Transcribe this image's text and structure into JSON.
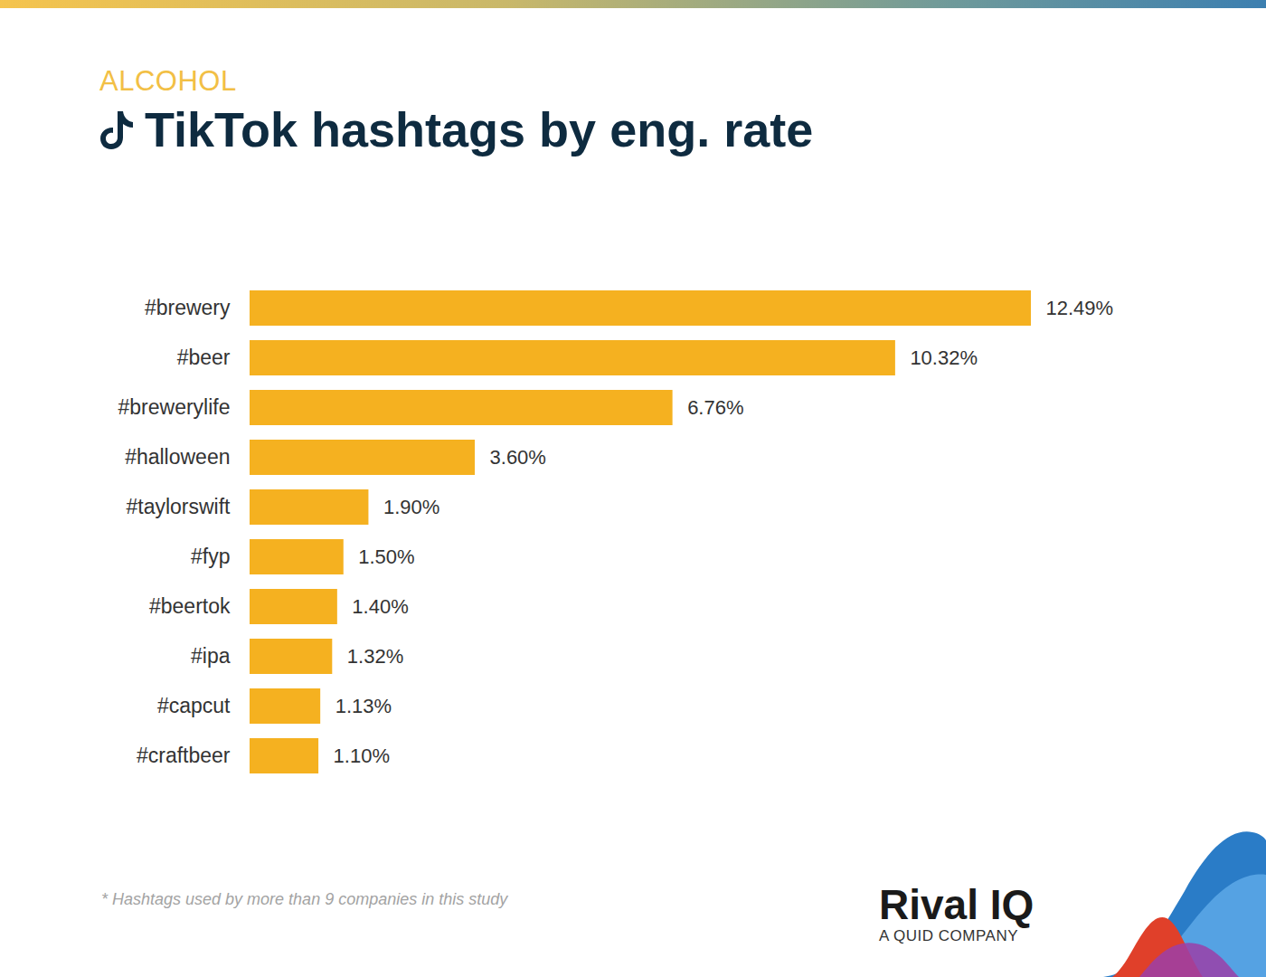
{
  "chart_data": {
    "type": "bar",
    "orientation": "horizontal",
    "subtitle": "ALCOHOL",
    "title": "TikTok hashtags by eng. rate",
    "categories": [
      "#brewery",
      "#beer",
      "#brewerylife",
      "#halloween",
      "#taylorswift",
      "#fyp",
      "#beertok",
      "#ipa",
      "#capcut",
      "#craftbeer"
    ],
    "values": [
      12.49,
      10.32,
      6.76,
      3.6,
      1.9,
      1.5,
      1.4,
      1.32,
      1.13,
      1.1
    ],
    "value_labels": [
      "12.49%",
      "10.32%",
      "6.76%",
      "3.60%",
      "1.90%",
      "1.50%",
      "1.40%",
      "1.32%",
      "1.13%",
      "1.10%"
    ],
    "color": "#f5b120",
    "data_labels": true,
    "tick_labels": "y",
    "grid": false,
    "caption": "* Hashtags used by more than 9 companies in this study",
    "annotations": [
      "Rival IQ",
      "A QUID COMPANY"
    ]
  }
}
